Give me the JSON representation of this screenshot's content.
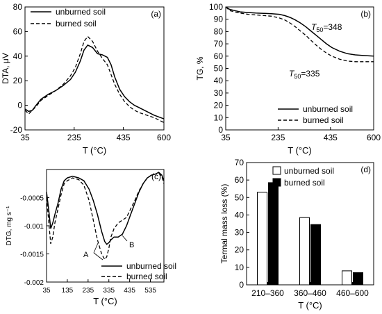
{
  "chart_data": [
    {
      "panel": "(a)",
      "type": "line",
      "ylabel": "DTA, μV",
      "xlabel": "T (°C)",
      "xlim": [
        35,
        600
      ],
      "ylim": [
        -20,
        80
      ],
      "xticks": [
        35,
        235,
        435,
        600
      ],
      "yticks": [
        -20,
        0,
        20,
        40,
        60,
        80
      ],
      "legend_position": "top-left",
      "series": [
        {
          "name": "unburned soil",
          "style": "solid",
          "x": [
            35,
            50,
            65,
            80,
            100,
            130,
            160,
            190,
            220,
            240,
            260,
            275,
            290,
            310,
            330,
            350,
            370,
            385,
            400,
            420,
            440,
            460,
            480,
            500,
            530,
            560,
            600
          ],
          "y": [
            -3,
            -5,
            -4,
            0,
            5,
            9,
            12,
            16,
            21,
            27,
            36,
            45,
            49,
            47,
            42,
            41,
            39,
            33,
            23,
            13,
            7,
            3,
            0,
            -2,
            -5,
            -8,
            -11
          ]
        },
        {
          "name": "burned soil",
          "style": "dashed",
          "x": [
            35,
            50,
            65,
            80,
            100,
            130,
            160,
            190,
            220,
            240,
            260,
            275,
            290,
            310,
            330,
            350,
            370,
            385,
            400,
            420,
            440,
            460,
            480,
            500,
            530,
            560,
            600
          ],
          "y": [
            -4,
            -7,
            -4,
            -1,
            4,
            8,
            12,
            17,
            24,
            31,
            42,
            52,
            56,
            52,
            44,
            38,
            33,
            25,
            17,
            9,
            3,
            -1,
            -4,
            -6,
            -8,
            -10,
            -14
          ]
        }
      ]
    },
    {
      "panel": "(b)",
      "type": "line",
      "ylabel": "TG, %",
      "xlabel": "T (°C)",
      "xlim": [
        35,
        600
      ],
      "ylim": [
        0,
        100
      ],
      "xticks": [
        35,
        235,
        435,
        600
      ],
      "yticks": [
        0,
        10,
        20,
        30,
        40,
        50,
        60,
        70,
        80,
        90,
        100
      ],
      "legend_position": "bottom-right",
      "annotations": [
        {
          "text_prefix": "T",
          "subscript": "50",
          "text": "=348",
          "x": 390,
          "y": 86
        },
        {
          "text_prefix": "T",
          "subscript": "50",
          "text": "=335",
          "x": 270,
          "y": 57
        }
      ],
      "series": [
        {
          "name": "unburned soil",
          "style": "solid",
          "x": [
            35,
            50,
            70,
            90,
            120,
            150,
            180,
            210,
            240,
            260,
            280,
            300,
            320,
            340,
            360,
            380,
            400,
            420,
            440,
            470,
            500,
            530,
            560,
            600
          ],
          "y": [
            100,
            98,
            97,
            96,
            95.5,
            95,
            94.8,
            94.5,
            94,
            93,
            91.5,
            89.5,
            87,
            84,
            80.5,
            77,
            73.5,
            70,
            67,
            64,
            62,
            61,
            60.5,
            60
          ]
        },
        {
          "name": "burned soil",
          "style": "dashed",
          "x": [
            35,
            50,
            70,
            90,
            120,
            150,
            180,
            210,
            240,
            260,
            280,
            300,
            320,
            340,
            360,
            380,
            400,
            420,
            440,
            470,
            500,
            530,
            560,
            600
          ],
          "y": [
            100,
            97,
            96,
            95,
            94,
            93.5,
            93,
            92.5,
            91,
            89.5,
            87,
            84,
            80.5,
            77,
            73,
            69,
            65.5,
            62.5,
            60,
            57.5,
            56,
            55.5,
            55.5,
            55.5
          ]
        }
      ]
    },
    {
      "panel": "(c)",
      "type": "line",
      "ylabel": "DTG, mg s⁻¹",
      "xlabel": "T (°C)",
      "xlim": [
        35,
        600
      ],
      "ylim": [
        -0.002,
        0
      ],
      "xticks": [
        35,
        135,
        235,
        335,
        435,
        535
      ],
      "yticks": [
        -0.002,
        -0.0015,
        -0.001,
        -0.0005
      ],
      "legend_position": "bottom-right",
      "annotations": [
        {
          "text": "A",
          "x": 300,
          "y": -0.00155
        },
        {
          "text": "B",
          "x": 370,
          "y": -0.00138
        }
      ],
      "series": [
        {
          "name": "unburned soil",
          "style": "solid",
          "x": [
            35,
            45,
            55,
            65,
            75,
            90,
            105,
            120,
            135,
            160,
            190,
            215,
            240,
            260,
            280,
            300,
            315,
            325,
            335,
            345,
            360,
            380,
            400,
            420,
            440,
            460,
            480,
            500,
            520,
            540,
            560,
            575,
            590,
            600
          ],
          "y": [
            -0.0004,
            -0.0007,
            -0.00105,
            -0.00095,
            -0.0008,
            -0.0006,
            -0.00035,
            -0.0002,
            -0.00015,
            -0.00012,
            -0.00015,
            -0.0002,
            -0.00035,
            -0.00055,
            -0.0008,
            -0.0011,
            -0.00128,
            -0.00133,
            -0.0013,
            -0.00125,
            -0.0012,
            -0.0012,
            -0.00115,
            -0.001,
            -0.0008,
            -0.0006,
            -0.0004,
            -0.00025,
            -0.00015,
            -0.0001,
            -8e-05,
            -5e-05,
            -0.0001,
            -0.0002
          ]
        },
        {
          "name": "burned soil",
          "style": "dashed",
          "x": [
            35,
            45,
            55,
            65,
            75,
            90,
            105,
            120,
            135,
            160,
            190,
            215,
            240,
            260,
            280,
            300,
            315,
            325,
            335,
            345,
            360,
            380,
            400,
            420,
            440,
            460,
            480,
            500,
            520,
            540,
            560,
            575,
            590,
            600
          ],
          "y": [
            -0.0005,
            -0.0009,
            -0.00132,
            -0.0012,
            -0.00095,
            -0.0007,
            -0.00045,
            -0.00025,
            -0.0002,
            -0.00015,
            -0.00018,
            -0.00028,
            -0.00055,
            -0.0009,
            -0.00125,
            -0.0015,
            -0.0016,
            -0.00155,
            -0.0014,
            -0.0012,
            -0.00105,
            -0.00095,
            -0.0009,
            -0.00085,
            -0.0007,
            -0.00055,
            -0.00038,
            -0.00025,
            -0.00015,
            -0.0001,
            -8e-05,
            -6e-05,
            -0.00012,
            -0.00025
          ]
        }
      ]
    },
    {
      "panel": "(d)",
      "type": "bar",
      "ylabel": "Termal mass loss (%)",
      "xlabel": "T (°C)",
      "ylim": [
        0,
        70
      ],
      "yticks": [
        0,
        10,
        20,
        30,
        40,
        50,
        60,
        70
      ],
      "legend_position": "top-right",
      "categories": [
        "210–360",
        "360–460",
        "460–600"
      ],
      "series": [
        {
          "name": "unburned soil",
          "color": "#ffffff",
          "values": [
            53,
            38.5,
            8
          ]
        },
        {
          "name": "burned soil",
          "color": "#000000",
          "values": [
            58.5,
            34.5,
            7
          ]
        }
      ]
    }
  ]
}
